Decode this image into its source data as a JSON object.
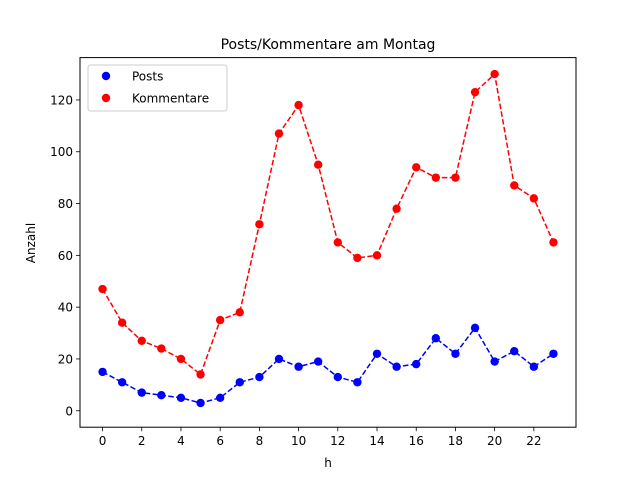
{
  "chart_data": {
    "type": "line",
    "title": "Posts/Kommentare am Montag",
    "xlabel": "h",
    "ylabel": "Anzahl",
    "x": [
      0,
      1,
      2,
      3,
      4,
      5,
      6,
      7,
      8,
      9,
      10,
      11,
      12,
      13,
      14,
      15,
      16,
      17,
      18,
      19,
      20,
      21,
      22,
      23
    ],
    "xlim": [
      -1.15,
      24.15
    ],
    "ylim": [
      -6.35,
      136.35
    ],
    "xticks": [
      0,
      2,
      4,
      6,
      8,
      10,
      12,
      14,
      16,
      18,
      20,
      22
    ],
    "yticks": [
      0,
      20,
      40,
      60,
      80,
      100,
      120
    ],
    "grid": false,
    "legend_position": "top-left",
    "series": [
      {
        "name": "Posts",
        "color": "#0000ff",
        "line_style": "dashed",
        "marker": "circle",
        "values": [
          15,
          11,
          7,
          6,
          5,
          3,
          5,
          11,
          13,
          20,
          17,
          19,
          13,
          11,
          22,
          17,
          18,
          28,
          22,
          32,
          19,
          23,
          17,
          22
        ]
      },
      {
        "name": "Kommentare",
        "color": "#ff0000",
        "line_style": "dashed",
        "marker": "circle",
        "values": [
          47,
          34,
          27,
          24,
          20,
          14,
          35,
          38,
          72,
          107,
          118,
          95,
          65,
          59,
          60,
          78,
          94,
          90,
          90,
          123,
          130,
          87,
          82,
          65
        ]
      }
    ]
  }
}
